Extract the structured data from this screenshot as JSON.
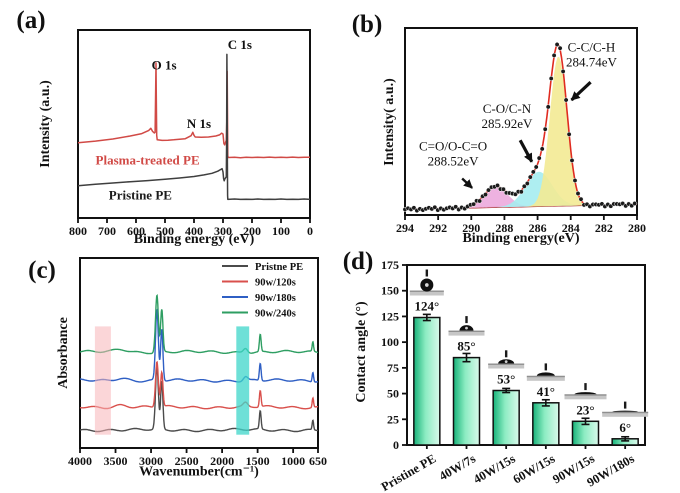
{
  "panels": {
    "a": {
      "letter": "(a)"
    },
    "b": {
      "letter": "(b)"
    },
    "c": {
      "letter": "(c)"
    },
    "d": {
      "letter": "(d)"
    }
  },
  "chart_data": [
    {
      "id": "a",
      "type": "line",
      "xlabel": "Binding energy (eV)",
      "ylabel": "Intensity (a.u.)",
      "xrange": [
        800,
        0
      ],
      "xticks": [
        800,
        700,
        600,
        500,
        400,
        300,
        200,
        100,
        0
      ],
      "ylim": [
        0,
        1
      ],
      "grid": false,
      "series": [
        {
          "name": "Plasma-treated PE",
          "color": "#d14a46",
          "points": [
            [
              800,
              0.4
            ],
            [
              740,
              0.409
            ],
            [
              680,
              0.42
            ],
            [
              620,
              0.436
            ],
            [
              580,
              0.449
            ],
            [
              556,
              0.466
            ],
            [
              549,
              0.477
            ],
            [
              543,
              0.461
            ],
            [
              537,
              0.452
            ],
            [
              534,
              0.456
            ],
            [
              532,
              0.7
            ],
            [
              531,
              0.825
            ],
            [
              530,
              0.65
            ],
            [
              528.5,
              0.44
            ],
            [
              527,
              0.416
            ],
            [
              510,
              0.413
            ],
            [
              490,
              0.414
            ],
            [
              470,
              0.416
            ],
            [
              450,
              0.419
            ],
            [
              430,
              0.422
            ],
            [
              410,
              0.438
            ],
            [
              404,
              0.456
            ],
            [
              400,
              0.44
            ],
            [
              396,
              0.431
            ],
            [
              375,
              0.429
            ],
            [
              350,
              0.431
            ],
            [
              325,
              0.436
            ],
            [
              312,
              0.442
            ],
            [
              305,
              0.451
            ],
            [
              300,
              0.447
            ],
            [
              297,
              0.396
            ],
            [
              294,
              0.389
            ],
            [
              291,
              0.403
            ],
            [
              288.5,
              0.414
            ],
            [
              287,
              0.52
            ],
            [
              285.5,
              0.78
            ],
            [
              284.5,
              0.56
            ],
            [
              283.5,
              0.33
            ],
            [
              282,
              0.322
            ],
            [
              260,
              0.323
            ],
            [
              240,
              0.321
            ],
            [
              220,
              0.323
            ],
            [
              200,
              0.322
            ],
            [
              180,
              0.323
            ],
            [
              160,
              0.322
            ],
            [
              140,
              0.324
            ],
            [
              120,
              0.322
            ],
            [
              100,
              0.323
            ],
            [
              80,
              0.322
            ],
            [
              60,
              0.324
            ],
            [
              40,
              0.322
            ],
            [
              20,
              0.323
            ],
            [
              0,
              0.323
            ]
          ]
        },
        {
          "name": "Pristine PE",
          "color": "#3f3f3f",
          "points": [
            [
              800,
              0.172
            ],
            [
              740,
              0.179
            ],
            [
              680,
              0.186
            ],
            [
              620,
              0.193
            ],
            [
              560,
              0.199
            ],
            [
              500,
              0.206
            ],
            [
              450,
              0.213
            ],
            [
              400,
              0.221
            ],
            [
              365,
              0.229
            ],
            [
              338,
              0.238
            ],
            [
              318,
              0.249
            ],
            [
              308,
              0.258
            ],
            [
              303,
              0.262
            ],
            [
              300,
              0.245
            ],
            [
              298,
              0.21
            ],
            [
              296,
              0.198
            ],
            [
              294,
              0.206
            ],
            [
              291,
              0.214
            ],
            [
              288.5,
              0.219
            ],
            [
              287.5,
              0.4
            ],
            [
              286.5,
              0.87
            ],
            [
              285.8,
              0.7
            ],
            [
              285,
              0.3
            ],
            [
              284.3,
              0.12
            ],
            [
              283.5,
              0.099
            ],
            [
              260,
              0.101
            ],
            [
              240,
              0.099
            ],
            [
              220,
              0.1
            ],
            [
              200,
              0.099
            ],
            [
              180,
              0.101
            ],
            [
              160,
              0.099
            ],
            [
              140,
              0.1
            ],
            [
              120,
              0.099
            ],
            [
              100,
              0.101
            ],
            [
              80,
              0.099
            ],
            [
              60,
              0.1
            ],
            [
              40,
              0.099
            ],
            [
              20,
              0.101
            ],
            [
              0,
              0.099
            ]
          ]
        }
      ],
      "peak_labels": [
        {
          "text": "O 1s",
          "x": 503,
          "y": 0.79
        },
        {
          "text": "N 1s",
          "x": 383,
          "y": 0.48
        },
        {
          "text": "C 1s",
          "x": 242,
          "y": 0.9
        }
      ],
      "series_labels": [
        {
          "text": "Plasma-treated PE",
          "x": 560,
          "y": 0.285,
          "color": "#d14a46"
        },
        {
          "text": "Pristine PE",
          "x": 585,
          "y": 0.098,
          "color": "#1a1a1a"
        }
      ]
    },
    {
      "id": "b",
      "type": "line-fit",
      "xlabel": "Binding energy(eV)",
      "ylabel": "Intensity( a.u.)",
      "xrange": [
        294,
        280
      ],
      "xticks": [
        294,
        292,
        290,
        288,
        286,
        284,
        282,
        280
      ],
      "baseline": {
        "start": 0.03,
        "end": 0.058,
        "color": "#b03030"
      },
      "envelope_color": "#e02b20",
      "scatter_color": "#1b1b1b",
      "components": [
        {
          "name": "C-C/C-H",
          "center": 284.74,
          "height": 0.8,
          "sigma": 0.52,
          "fill": "#f3ea93"
        },
        {
          "name": "C-O/C-N",
          "center": 285.92,
          "height": 0.185,
          "sigma": 0.8,
          "fill": "#a5ecef"
        },
        {
          "name": "C=O/O-C=O",
          "center": 288.52,
          "height": 0.11,
          "sigma": 0.72,
          "fill": "#ecaadd"
        }
      ],
      "annotations": [
        {
          "lines": [
            "C-C/C-H",
            "284.74eV"
          ],
          "x": 282.75,
          "y": 0.875,
          "arrow": {
            "x1": 282.8,
            "y1": 0.71,
            "x2": 283.95,
            "y2": 0.615,
            "w": 3.2
          }
        },
        {
          "lines": [
            "C-O/C-N",
            "285.92eV"
          ],
          "x": 287.85,
          "y": 0.545,
          "arrow": {
            "x1": 287.05,
            "y1": 0.4,
            "x2": 286.35,
            "y2": 0.285,
            "w": 3.2
          }
        },
        {
          "lines": [
            "C=O/O-C=O",
            "288.52eV"
          ],
          "x": 291.1,
          "y": 0.345,
          "arrow": {
            "x1": 290.55,
            "y1": 0.195,
            "x2": 289.95,
            "y2": 0.145,
            "w": 2.4
          }
        }
      ]
    },
    {
      "id": "c",
      "type": "line",
      "xlabel": "Wavenumber(cm⁻¹)",
      "ylabel": "Absorbance",
      "xrange": [
        4000,
        650
      ],
      "xticks": [
        4000,
        3500,
        3000,
        2500,
        2000,
        1500,
        1000,
        650
      ],
      "bands": [
        {
          "x1": 3790,
          "x2": 3565,
          "color": "rgba(247,180,184,0.55)"
        },
        {
          "x1": 1800,
          "x2": 1618,
          "color": "rgba(61,213,201,0.75)"
        }
      ],
      "series": [
        {
          "name": "Pristne PE",
          "color": "#4b4b4b",
          "offset": 0.095,
          "peaks": [
            [
              2917,
              0.33,
              20
            ],
            [
              2849,
              0.25,
              16
            ],
            [
              1463,
              0.095,
              12
            ],
            [
              722,
              0.05,
              10
            ]
          ]
        },
        {
          "name": "90w/120s",
          "color": "#d9504c",
          "offset": 0.215,
          "peaks": [
            [
              2917,
              0.24,
              20
            ],
            [
              2849,
              0.18,
              16
            ],
            [
              1463,
              0.085,
              12
            ],
            [
              722,
              0.05,
              10
            ],
            [
              1670,
              0.02,
              30
            ],
            [
              3420,
              0.012,
              90
            ]
          ]
        },
        {
          "name": "90w/180s",
          "color": "#2f5fc4",
          "offset": 0.355,
          "peaks": [
            [
              2917,
              0.37,
              20
            ],
            [
              2849,
              0.27,
              16
            ],
            [
              1463,
              0.09,
              12
            ],
            [
              722,
              0.05,
              10
            ],
            [
              1670,
              0.022,
              30
            ],
            [
              3420,
              0.014,
              90
            ]
          ]
        },
        {
          "name": "90w/240s",
          "color": "#2e9e62",
          "offset": 0.505,
          "peaks": [
            [
              2917,
              0.3,
              20
            ],
            [
              2849,
              0.22,
              16
            ],
            [
              1463,
              0.09,
              12
            ],
            [
              722,
              0.05,
              10
            ],
            [
              1670,
              0.025,
              30
            ],
            [
              3420,
              0.015,
              90
            ]
          ]
        }
      ]
    },
    {
      "id": "d",
      "type": "bar",
      "ylabel": "Contact angle (°)",
      "ylim": [
        0,
        175
      ],
      "yticks": [
        0,
        25,
        50,
        75,
        100,
        125,
        150,
        175
      ],
      "categories": [
        "Pristine PE",
        "40W/7s",
        "40W/15s",
        "60W/15s",
        "90W/15s",
        "90W/180s"
      ],
      "values": [
        124,
        85,
        53,
        41,
        23,
        6
      ],
      "errors": [
        3,
        4,
        2,
        3,
        3,
        2
      ],
      "bar_labels": [
        "124°",
        "85°",
        "53°",
        "41°",
        "23°",
        "6°"
      ],
      "bar_gradient": [
        "#17b279",
        "#8cecc2",
        "#d9f9eb"
      ],
      "bar_edge": "#101010",
      "droplets": [
        {
          "shape": "ball",
          "rx": 6.5,
          "ry": 6.5,
          "strip_w": 34
        },
        {
          "shape": "dome",
          "rx": 7,
          "ry": 5.5,
          "strip_w": 36
        },
        {
          "shape": "dome",
          "rx": 8,
          "ry": 4.2,
          "strip_w": 36
        },
        {
          "shape": "dome",
          "rx": 9,
          "ry": 3.4,
          "strip_w": 38
        },
        {
          "shape": "dome",
          "rx": 11,
          "ry": 2.2,
          "strip_w": 42
        },
        {
          "shape": "dome",
          "rx": 13,
          "ry": 1.2,
          "strip_w": 46
        }
      ]
    }
  ]
}
